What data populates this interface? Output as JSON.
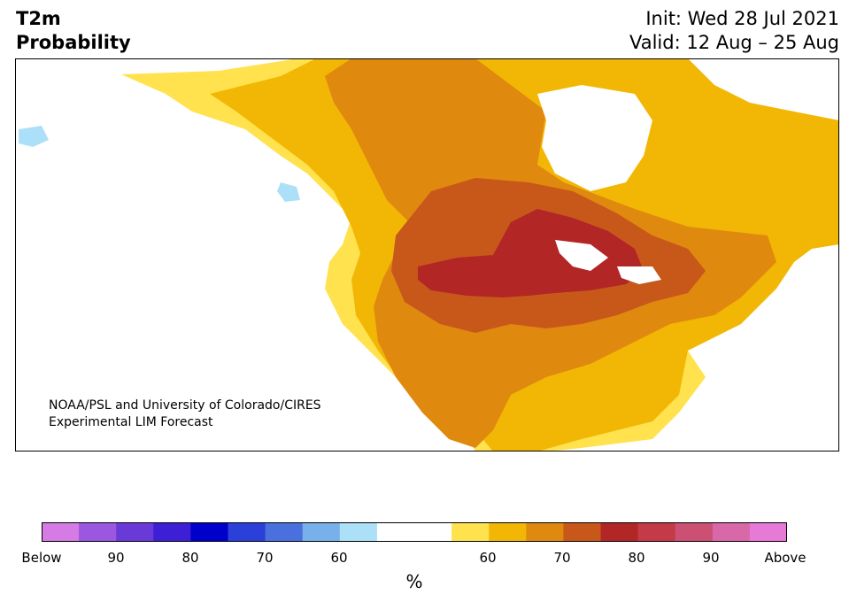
{
  "header": {
    "title_line1": "T2m",
    "title_line2": "Probability",
    "init": "Init: Wed 28 Jul 2021",
    "valid": "Valid: 12 Aug – 25 Aug"
  },
  "credit": {
    "line1": "NOAA/PSL and University of Colorado/CIRES",
    "line2": "Experimental LIM Forecast"
  },
  "colorbar": {
    "unit": "%",
    "colors": [
      "#d67ae6",
      "#9b57e0",
      "#6a3ad8",
      "#3d1fd6",
      "#0000cc",
      "#2b3fd9",
      "#4a70dd",
      "#78b0ec",
      "#ace0f8",
      "#ffffff",
      "#ffffff",
      "#ffe24e",
      "#f2b705",
      "#e0890f",
      "#c8581a",
      "#b22626",
      "#c43a48",
      "#cc4f74",
      "#d868a8",
      "#e67ad6"
    ],
    "tick_labels": [
      "Below",
      "90",
      "80",
      "70",
      "60",
      "",
      "60",
      "70",
      "80",
      "90",
      "Above"
    ]
  },
  "map": {
    "region": "North America",
    "palette": {
      "above_50_60": "#ffe24e",
      "above_60_70": "#f2b705",
      "above_70_80": "#e0890f",
      "above_80_90": "#c8581a",
      "above_90": "#b22626",
      "below_50_60": "#ace0f8"
    }
  }
}
